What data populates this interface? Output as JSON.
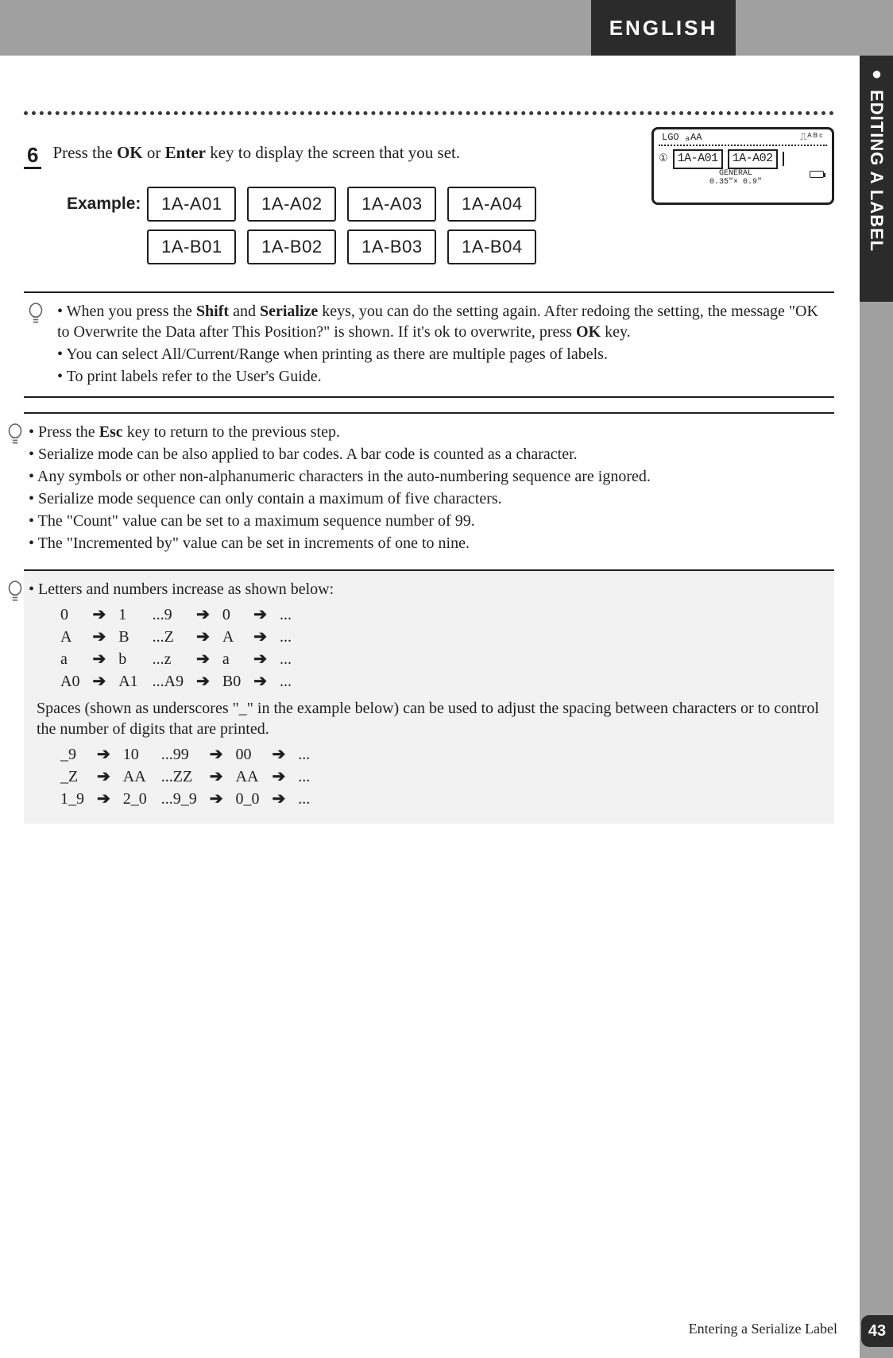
{
  "header": {
    "english_tab": "ENGLISH",
    "side_label": "EDITING A LABEL"
  },
  "step": {
    "number": "6",
    "text_pre": "Press the ",
    "key1": "OK",
    "text_mid": " or ",
    "key2": "Enter",
    "text_post": " key to display the screen that you set."
  },
  "example": {
    "label": "Example:",
    "cells": [
      "1A-A01",
      "1A-A02",
      "1A-A03",
      "1A-A04",
      "1A-B01",
      "1A-B02",
      "1A-B03",
      "1A-B04"
    ]
  },
  "lcd": {
    "top_left": "LGO ₐAA",
    "top_right": "⎍ᴬᴮᶜ",
    "idx": "①",
    "box1": "1A-A01",
    "box2": "1A-A02",
    "bottom_left": "GENERAL",
    "bottom_mid": "0.35\"× 0.9\""
  },
  "note1": {
    "b1_pre": "When you press the ",
    "b1_k1": "Shift",
    "b1_mid1": " and ",
    "b1_k2": "Serialize",
    "b1_mid2": " keys, you can do the setting again. After redoing the setting, the message \"OK to Overwrite the Data after This Position?\" is shown. If it's ok to overwrite, press ",
    "b1_k3": "OK",
    "b1_post": " key.",
    "b2": "You can select All/Current/Range when printing as there are multiple pages of labels.",
    "b3": "To print labels refer to the User's Guide."
  },
  "note2": {
    "b1_pre": "Press the ",
    "b1_k1": "Esc",
    "b1_post": " key to return to the previous step.",
    "b2": "Serialize mode can be also applied to bar codes. A bar code is counted as a character.",
    "b3": "Any symbols or other non-alphanumeric characters in the auto-numbering sequence are ignored.",
    "b4": "Serialize mode sequence can only contain a maximum of five characters.",
    "b5": "The \"Count\" value can be set to a maximum sequence number of 99.",
    "b6": "The \"Incremented by\" value can be set in increments of one to nine."
  },
  "note3": {
    "intro": "Letters and numbers increase as shown below:",
    "rows1": [
      [
        "0",
        "1",
        "...9",
        "0",
        "..."
      ],
      [
        "A",
        "B",
        "...Z",
        "A",
        "..."
      ],
      [
        "a",
        "b",
        "...z",
        "a",
        "..."
      ],
      [
        "A0",
        "A1",
        "...A9",
        "B0",
        "..."
      ]
    ],
    "spaces_text": "Spaces (shown as underscores \"_\" in the example below) can be used to adjust the spacing between characters or to control the number of digits that are printed.",
    "rows2": [
      [
        "_9",
        "10",
        "...99",
        "00",
        "..."
      ],
      [
        "_Z",
        "AA",
        "...ZZ",
        "AA",
        "..."
      ],
      [
        "1_9",
        "2_0",
        "...9_9",
        "0_0",
        "..."
      ]
    ],
    "arrow": "➔"
  },
  "footer": {
    "text": "Entering a Serialize Label",
    "page": "43"
  }
}
